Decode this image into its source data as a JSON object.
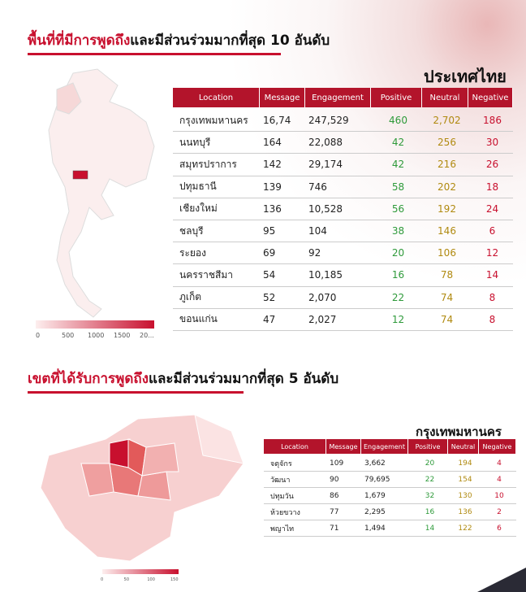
{
  "section1": {
    "title_highlight": "พื้นที่ที่มีการพูดถึง",
    "title_rest": "และมีส่วนร่วมมากที่สุด 10 อันดับ",
    "region": "ประเทศไทย",
    "legend_ticks": [
      "0",
      "500",
      "1000",
      "1500",
      "20..."
    ],
    "table": {
      "columns": [
        "Location",
        "Message",
        "Engagement",
        "Positive",
        "Neutral",
        "Negative"
      ],
      "rows": [
        [
          "กรุงเทพมหานคร",
          "16,74",
          "247,529",
          "460",
          "2,702",
          "186"
        ],
        [
          "นนทบุรี",
          "164",
          "22,088",
          "42",
          "256",
          "30"
        ],
        [
          "สมุทรปราการ",
          "142",
          "29,174",
          "42",
          "216",
          "26"
        ],
        [
          "ปทุมธานี",
          "139",
          "746",
          "58",
          "202",
          "18"
        ],
        [
          "เชียงใหม่",
          "136",
          "10,528",
          "56",
          "192",
          "24"
        ],
        [
          "ชลบุรี",
          "95",
          "104",
          "38",
          "146",
          "6"
        ],
        [
          "ระยอง",
          "69",
          "92",
          "20",
          "106",
          "12"
        ],
        [
          "นครราชสีมา",
          "54",
          "10,185",
          "16",
          "78",
          "14"
        ],
        [
          "ภูเก็ต",
          "52",
          "2,070",
          "22",
          "74",
          "8"
        ],
        [
          "ขอนแก่น",
          "47",
          "2,027",
          "12",
          "74",
          "8"
        ]
      ]
    }
  },
  "section2": {
    "title_highlight": "เขตที่ได้รับการพูดถึง",
    "title_rest": "และมีส่วนร่วมมากที่สุด 5 อันดับ",
    "region": "กรุงเทพมหานคร",
    "legend_ticks": [
      "0",
      "50",
      "100",
      "150"
    ],
    "table": {
      "columns": [
        "Location",
        "Message",
        "Engagement",
        "Positive",
        "Neutral",
        "Negative"
      ],
      "rows": [
        [
          "จตุจักร",
          "109",
          "3,662",
          "20",
          "194",
          "4"
        ],
        [
          "วัฒนา",
          "90",
          "79,695",
          "22",
          "154",
          "4"
        ],
        [
          "ปทุมวัน",
          "86",
          "1,679",
          "32",
          "130",
          "10"
        ],
        [
          "ห้วยขวาง",
          "77",
          "2,295",
          "16",
          "136",
          "2"
        ],
        [
          "พญาไท",
          "71",
          "1,494",
          "14",
          "122",
          "6"
        ]
      ]
    }
  }
}
